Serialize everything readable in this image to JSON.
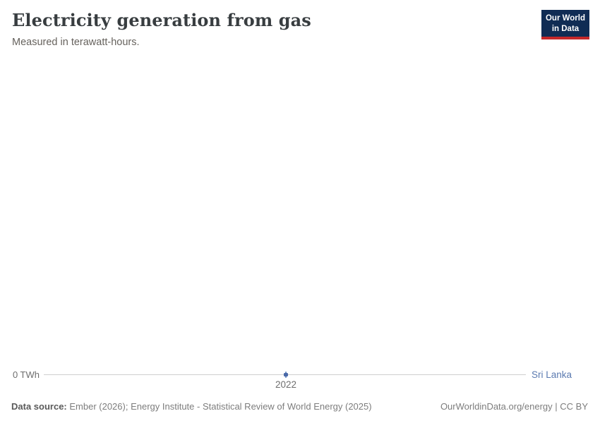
{
  "header": {
    "title": "Electricity generation from gas",
    "subtitle": "Measured in terawatt-hours.",
    "logo": {
      "line1": "Our World",
      "line2": "in Data",
      "bg_color": "#102c54",
      "bar_color": "#c5282a"
    }
  },
  "chart": {
    "y_axis_label": "0 TWh",
    "x_tick_label": "2022",
    "entity_label": "Sri Lanka",
    "colors": {
      "series": "#4a69a8",
      "entity_label": "#5b7ab0",
      "axis_line": "#cfcfcf"
    }
  },
  "chart_data": {
    "type": "line",
    "title": "Electricity generation from gas",
    "subtitle": "Measured in terawatt-hours.",
    "xlabel": "",
    "ylabel": "TWh",
    "series": [
      {
        "name": "Sri Lanka",
        "x": [
          2022
        ],
        "values": [
          0
        ]
      }
    ],
    "x_ticks": [
      "2022"
    ],
    "y_ticks": [
      "0 TWh"
    ],
    "ylim": [
      0,
      0
    ],
    "grid": false,
    "legend_position": "end-of-line-label"
  },
  "footer": {
    "source_label": "Data source:",
    "source_text": " Ember (2026); Energy Institute - Statistical Review of World Energy (2025)",
    "right_text": "OurWorldinData.org/energy | CC BY"
  }
}
